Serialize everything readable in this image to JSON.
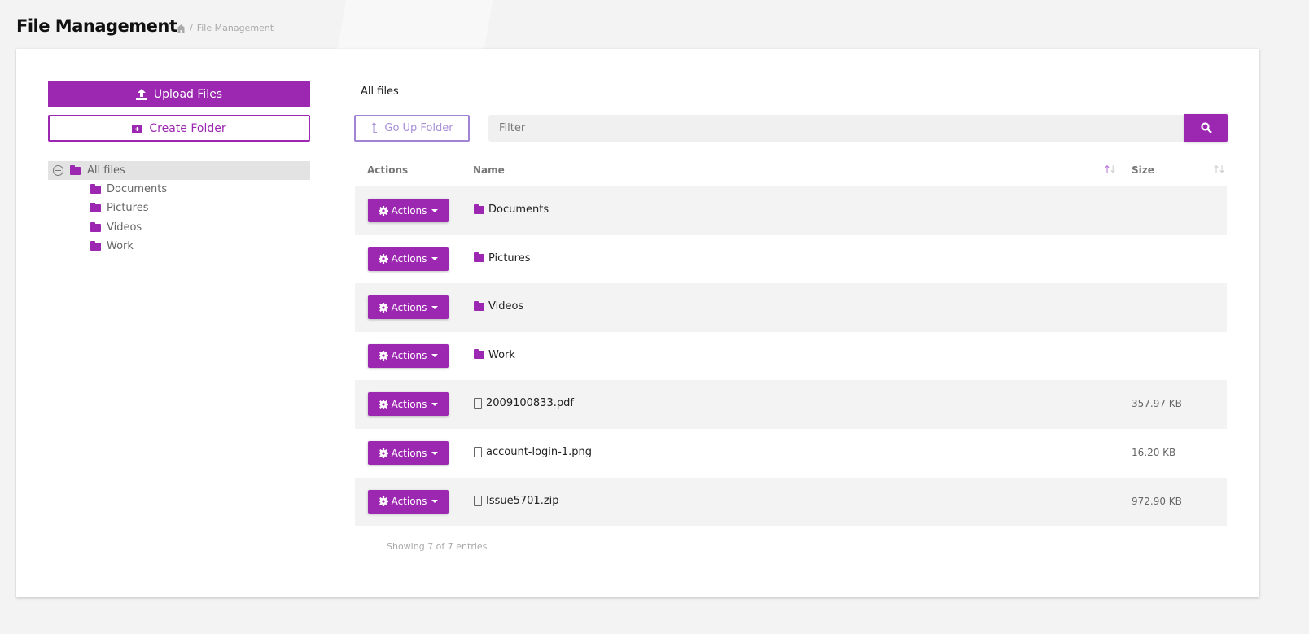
{
  "header": {
    "title": "File Management",
    "breadcrumb": "File Management",
    "home_icon": "home-icon"
  },
  "colors": {
    "accent": "#9c27b0",
    "go_up_border": "#a183d6"
  },
  "sidebar": {
    "upload_label": "Upload Files",
    "create_folder_label": "Create Folder",
    "tree": {
      "root": "All files",
      "children": [
        "Documents",
        "Pictures",
        "Videos",
        "Work"
      ]
    }
  },
  "main": {
    "current_folder": "All files",
    "go_up_label": "Go Up Folder",
    "filter_placeholder": "Filter",
    "columns": {
      "actions": "Actions",
      "name": "Name",
      "size": "Size"
    },
    "sort": {
      "name": "ascending",
      "size": "none"
    },
    "action_label": "Actions",
    "rows": [
      {
        "name": "Documents",
        "type": "folder",
        "size": ""
      },
      {
        "name": "Pictures",
        "type": "folder",
        "size": ""
      },
      {
        "name": "Videos",
        "type": "folder",
        "size": ""
      },
      {
        "name": "Work",
        "type": "folder",
        "size": ""
      },
      {
        "name": "2009100833.pdf",
        "type": "pdf",
        "size": "357.97 KB"
      },
      {
        "name": "account-login-1.png",
        "type": "image",
        "size": "16.20 KB"
      },
      {
        "name": "Issue5701.zip",
        "type": "archive",
        "size": "972.90 KB"
      }
    ],
    "footer": "Showing 7 of 7 entries"
  }
}
